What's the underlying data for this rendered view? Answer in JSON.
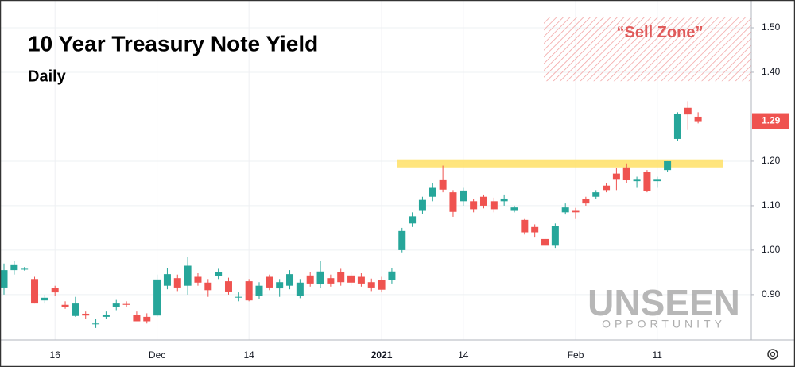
{
  "chart_data": {
    "type": "candlestick",
    "title": "10 Year Treasury Note Yield",
    "subtitle": "Daily",
    "categories": [
      null,
      null,
      null,
      null,
      null,
      "16",
      null,
      null,
      null,
      null,
      null,
      null,
      null,
      null,
      null,
      "Dec",
      null,
      null,
      null,
      null,
      null,
      null,
      null,
      null,
      "14",
      null,
      null,
      null,
      null,
      null,
      null,
      null,
      null,
      null,
      null,
      null,
      null,
      "2021",
      null,
      null,
      null,
      null,
      null,
      null,
      null,
      "14",
      null,
      null,
      null,
      null,
      null,
      null,
      null,
      null,
      null,
      null,
      "Feb",
      null,
      null,
      null,
      null,
      null,
      null,
      null,
      "11",
      null,
      null,
      null,
      null
    ],
    "open": [
      0.916,
      0.955,
      0.958,
      0.935,
      0.887,
      0.915,
      0.877,
      0.852,
      0.857,
      0.835,
      0.85,
      0.872,
      0.879,
      0.855,
      0.85,
      0.853,
      0.92,
      0.937,
      0.92,
      0.94,
      0.927,
      0.941,
      0.93,
      0.895,
      0.93,
      0.898,
      0.94,
      0.914,
      0.92,
      0.898,
      0.943,
      0.923,
      0.937,
      0.95,
      0.943,
      0.94,
      0.928,
      0.932,
      0.932,
      1.0,
      1.06,
      1.09,
      1.12,
      1.159,
      1.13,
      1.11,
      1.11,
      1.12,
      1.11,
      1.11,
      1.09,
      1.068,
      1.052,
      1.025,
      1.01,
      1.085,
      1.09,
      1.115,
      1.12,
      1.145,
      1.172,
      1.186,
      1.155,
      1.175,
      1.155,
      1.18,
      1.25,
      1.32,
      1.3
    ],
    "high": [
      0.97,
      0.975,
      0.962,
      0.94,
      0.9,
      0.92,
      0.885,
      0.895,
      0.862,
      0.845,
      0.862,
      0.888,
      0.885,
      0.862,
      0.858,
      0.945,
      0.96,
      0.945,
      0.985,
      0.948,
      0.935,
      0.958,
      0.938,
      0.905,
      0.935,
      0.928,
      0.945,
      0.935,
      0.955,
      0.935,
      0.95,
      0.975,
      0.945,
      0.958,
      0.95,
      0.948,
      0.936,
      0.94,
      0.96,
      1.05,
      1.085,
      1.12,
      1.15,
      1.19,
      1.135,
      1.14,
      1.115,
      1.125,
      1.118,
      1.125,
      1.1,
      1.07,
      1.058,
      1.03,
      1.06,
      1.105,
      1.095,
      1.12,
      1.135,
      1.15,
      1.185,
      1.195,
      1.165,
      1.18,
      1.165,
      1.2,
      1.31,
      1.335,
      1.31
    ],
    "low": [
      0.9,
      0.945,
      0.954,
      0.88,
      0.88,
      0.898,
      0.868,
      0.85,
      0.845,
      0.825,
      0.845,
      0.865,
      0.872,
      0.84,
      0.835,
      0.85,
      0.912,
      0.908,
      0.9,
      0.92,
      0.895,
      0.935,
      0.9,
      0.885,
      0.885,
      0.89,
      0.91,
      0.895,
      0.912,
      0.892,
      0.918,
      0.915,
      0.918,
      0.92,
      0.92,
      0.918,
      0.908,
      0.905,
      0.925,
      0.995,
      1.052,
      1.082,
      1.11,
      1.13,
      1.075,
      1.1,
      1.085,
      1.094,
      1.085,
      1.1,
      1.085,
      1.035,
      1.03,
      1.0,
      1.005,
      1.08,
      1.07,
      1.1,
      1.115,
      1.13,
      1.135,
      1.15,
      1.14,
      1.13,
      1.14,
      1.175,
      1.245,
      1.27,
      1.285
    ],
    "close": [
      0.955,
      0.968,
      0.958,
      0.88,
      0.893,
      0.905,
      0.872,
      0.88,
      0.853,
      0.835,
      0.855,
      0.88,
      0.877,
      0.84,
      0.84,
      0.934,
      0.946,
      0.916,
      0.965,
      0.927,
      0.91,
      0.95,
      0.907,
      0.895,
      0.887,
      0.92,
      0.916,
      0.928,
      0.946,
      0.927,
      0.925,
      0.952,
      0.925,
      0.928,
      0.927,
      0.925,
      0.916,
      0.911,
      0.952,
      1.043,
      1.076,
      1.113,
      1.14,
      1.136,
      1.086,
      1.134,
      1.092,
      1.1,
      1.092,
      1.116,
      1.096,
      1.04,
      1.04,
      1.01,
      1.055,
      1.096,
      1.085,
      1.105,
      1.13,
      1.135,
      1.16,
      1.157,
      1.16,
      1.132,
      1.16,
      1.2,
      1.307,
      1.305,
      1.29
    ],
    "up_color": "#26a69a",
    "down_color": "#ef5350",
    "ylim": [
      0.798,
      1.5625
    ],
    "yticks": [
      {
        "value": 0.9,
        "label": "0.90"
      },
      {
        "value": 1.0,
        "label": "1.00"
      },
      {
        "value": 1.1,
        "label": "1.10"
      },
      {
        "value": 1.2,
        "label": "1.20"
      },
      {
        "value": 1.4,
        "label": "1.40"
      },
      {
        "value": 1.5,
        "label": "1.50"
      }
    ],
    "grid": true,
    "sell_zone": {
      "label": "“Sell Zone”",
      "range": [
        1.38,
        1.525
      ]
    },
    "resistance_band": [
      1.186,
      1.204
    ],
    "watermark": {
      "title": "UNSEEN",
      "subtitle": "OPPORTUNITY"
    }
  }
}
